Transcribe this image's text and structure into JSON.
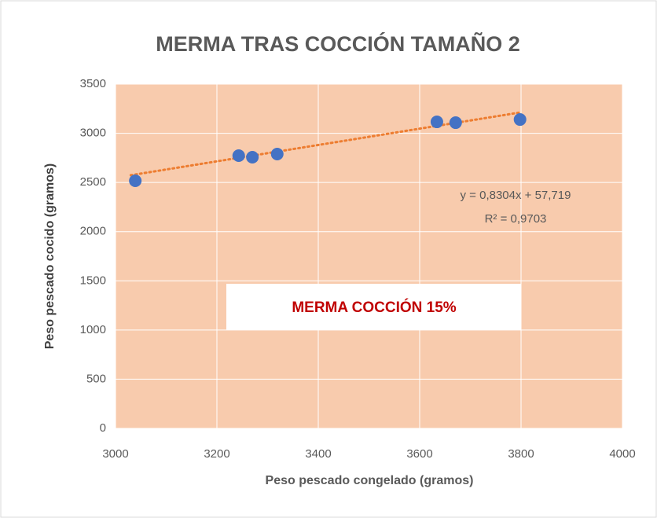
{
  "chart_data": {
    "type": "scatter",
    "title": "MERMA TRAS COCCIÓN TAMAÑO 2",
    "x_label": "Peso pescado congelado (gramos)",
    "y_label": "Peso pescado cocido (gramos)",
    "series": [
      {
        "name": "Peso pescado cocido",
        "color": "#4472c4",
        "x": [
          3039,
          3243,
          3270,
          3319,
          3634,
          3671,
          3798
        ],
        "values": [
          2517,
          2773,
          2757,
          2789,
          3116,
          3108,
          3140
        ]
      }
    ],
    "xlim": [
      3000,
      4000
    ],
    "xticks": [
      3000,
      3200,
      3400,
      3600,
      3800,
      4000
    ],
    "ylim": [
      0,
      3500
    ],
    "yticks": [
      0,
      500,
      1000,
      1500,
      2000,
      2500,
      3000,
      3500
    ],
    "grid": true,
    "plot_background": "#f8cbad",
    "trendline": {
      "slope": 0.8304,
      "intercept": 57.719,
      "x": [
        3030,
        3800
      ],
      "color": "#ed7d31",
      "label": "y = 0,8304x + 57,719",
      "r2": 0.9703,
      "r2_label": "R² = 0,9703"
    },
    "annotation": "MERMA COCCIÓN 15%"
  }
}
